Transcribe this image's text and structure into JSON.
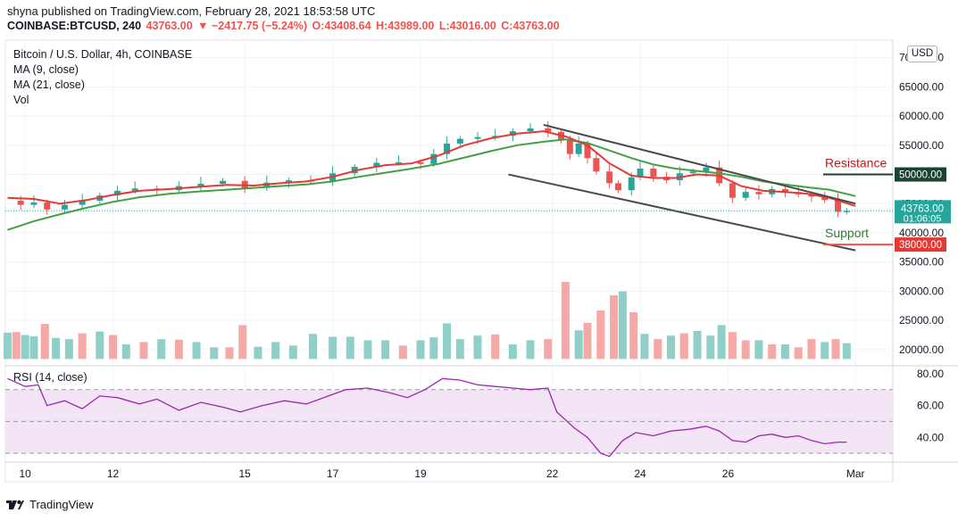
{
  "header": {
    "publisher_line": "shyna published on TradingView.com, February 28, 2021 18:53:58 UTC",
    "symbol": "COINBASE:BTCUSD, 240",
    "last": "43763.00",
    "change": "▼ −2417.75 (−5.24%)",
    "open": "O:43408.64",
    "high": "H:43989.00",
    "low": "L:43016.00",
    "close": "C:43763.00"
  },
  "legend": {
    "title": "Bitcoin / U.S. Dollar, 4h, COINBASE",
    "ma9": "MA (9, close)",
    "ma21": "MA (21, close)",
    "vol": "Vol"
  },
  "rsi_label": "RSI (14, close)",
  "currency_button": "USD",
  "footer": {
    "brand": "TradingView"
  },
  "colors": {
    "up": "#26a69a",
    "down": "#ef5350",
    "ma9": "#e53935",
    "ma21": "#43a047",
    "trendline": "#4a4a4a",
    "rsi": "#9c27b0",
    "rsi_band": "#f3e5f5",
    "resistance": "#b71c1c",
    "support": "#2e7d32",
    "price_tag": "#26a69a"
  },
  "chart_data": [
    {
      "type": "candlestick",
      "title": "Bitcoin / U.S. Dollar, 4h, COINBASE",
      "ylim": [
        18000,
        73000
      ],
      "xlim": [
        9.55,
        29.75
      ],
      "y_ticks": [
        "70000.00",
        "65000.00",
        "60000.00",
        "55000.00",
        "50000.00",
        "45000.00",
        "40000.00",
        "35000.00",
        "30000.00",
        "25000.00",
        "20000.00"
      ],
      "x_ticks": [
        {
          "x": 10,
          "label": "10"
        },
        {
          "x": 12,
          "label": "12"
        },
        {
          "x": 15,
          "label": "15"
        },
        {
          "x": 17,
          "label": "17"
        },
        {
          "x": 19,
          "label": "19"
        },
        {
          "x": 22,
          "label": "22"
        },
        {
          "x": 24,
          "label": "24"
        },
        {
          "x": 26,
          "label": "26"
        },
        {
          "x": 28.9,
          "label": "Mar"
        }
      ],
      "close_path": [
        [
          9.6,
          45500
        ],
        [
          9.9,
          44800
        ],
        [
          10.2,
          45200
        ],
        [
          10.5,
          44000
        ],
        [
          10.9,
          44800
        ],
        [
          11.3,
          45500
        ],
        [
          11.7,
          46400
        ],
        [
          12.1,
          47200
        ],
        [
          12.5,
          47600
        ],
        [
          13.0,
          47300
        ],
        [
          13.5,
          48000
        ],
        [
          14.0,
          48400
        ],
        [
          14.5,
          48900
        ],
        [
          15.0,
          47700
        ],
        [
          15.5,
          48600
        ],
        [
          16.0,
          49000
        ],
        [
          16.5,
          48900
        ],
        [
          17.0,
          50200
        ],
        [
          17.5,
          51300
        ],
        [
          18.0,
          52000
        ],
        [
          18.5,
          52100
        ],
        [
          19.0,
          51800
        ],
        [
          19.3,
          53500
        ],
        [
          19.6,
          55300
        ],
        [
          19.9,
          56100
        ],
        [
          20.3,
          56400
        ],
        [
          20.7,
          56600
        ],
        [
          21.1,
          57400
        ],
        [
          21.5,
          57900
        ],
        [
          21.9,
          57300
        ],
        [
          22.2,
          55800
        ],
        [
          22.4,
          53500
        ],
        [
          22.6,
          55300
        ],
        [
          22.8,
          52800
        ],
        [
          23.0,
          50500
        ],
        [
          23.3,
          48500
        ],
        [
          23.5,
          47300
        ],
        [
          23.8,
          49500
        ],
        [
          24.0,
          51000
        ],
        [
          24.3,
          49600
        ],
        [
          24.6,
          49000
        ],
        [
          24.9,
          50200
        ],
        [
          25.2,
          50500
        ],
        [
          25.5,
          51200
        ],
        [
          25.8,
          48500
        ],
        [
          26.1,
          46000
        ],
        [
          26.4,
          47000
        ],
        [
          26.7,
          46600
        ],
        [
          27.0,
          47500
        ],
        [
          27.3,
          47000
        ],
        [
          27.6,
          46600
        ],
        [
          27.9,
          46200
        ],
        [
          28.2,
          45600
        ],
        [
          28.5,
          43600
        ],
        [
          28.7,
          43763
        ]
      ],
      "ma9_path": [
        [
          9.6,
          46000
        ],
        [
          10.2,
          45800
        ],
        [
          10.8,
          45000
        ],
        [
          11.4,
          45600
        ],
        [
          12.0,
          46500
        ],
        [
          12.6,
          47200
        ],
        [
          13.3,
          47500
        ],
        [
          14.0,
          47900
        ],
        [
          14.6,
          48200
        ],
        [
          15.2,
          48100
        ],
        [
          15.8,
          48500
        ],
        [
          16.4,
          48800
        ],
        [
          17.0,
          49600
        ],
        [
          17.6,
          50800
        ],
        [
          18.2,
          51600
        ],
        [
          18.8,
          51900
        ],
        [
          19.4,
          53200
        ],
        [
          20.0,
          55000
        ],
        [
          20.6,
          56200
        ],
        [
          21.2,
          57000
        ],
        [
          21.8,
          57400
        ],
        [
          22.3,
          56500
        ],
        [
          22.8,
          55000
        ],
        [
          23.3,
          51900
        ],
        [
          23.8,
          49800
        ],
        [
          24.3,
          49400
        ],
        [
          24.8,
          49400
        ],
        [
          25.3,
          50000
        ],
        [
          25.8,
          49800
        ],
        [
          26.3,
          48000
        ],
        [
          26.8,
          47200
        ],
        [
          27.3,
          47000
        ],
        [
          27.8,
          46700
        ],
        [
          28.3,
          46000
        ],
        [
          28.9,
          44600
        ]
      ],
      "ma21_path": [
        [
          9.6,
          40500
        ],
        [
          10.2,
          42000
        ],
        [
          10.8,
          43200
        ],
        [
          11.4,
          44300
        ],
        [
          12.0,
          45300
        ],
        [
          12.6,
          46100
        ],
        [
          13.3,
          46700
        ],
        [
          14.0,
          47100
        ],
        [
          14.6,
          47400
        ],
        [
          15.2,
          47700
        ],
        [
          15.8,
          48000
        ],
        [
          16.4,
          48300
        ],
        [
          17.0,
          48800
        ],
        [
          17.6,
          49600
        ],
        [
          18.2,
          50300
        ],
        [
          18.8,
          51000
        ],
        [
          19.4,
          51800
        ],
        [
          20.0,
          52900
        ],
        [
          20.6,
          54000
        ],
        [
          21.2,
          55000
        ],
        [
          21.8,
          55600
        ],
        [
          22.3,
          56000
        ],
        [
          22.8,
          55400
        ],
        [
          23.3,
          54100
        ],
        [
          23.8,
          52800
        ],
        [
          24.3,
          51700
        ],
        [
          24.8,
          51000
        ],
        [
          25.3,
          50600
        ],
        [
          25.8,
          50200
        ],
        [
          26.3,
          49600
        ],
        [
          26.8,
          48800
        ],
        [
          27.3,
          48300
        ],
        [
          27.8,
          47800
        ],
        [
          28.3,
          47400
        ],
        [
          28.9,
          46300
        ]
      ],
      "trendlines": [
        {
          "from": [
            21.8,
            58500
          ],
          "to": [
            28.9,
            45000
          ]
        },
        {
          "from": [
            21.0,
            50000
          ],
          "to": [
            28.9,
            37000
          ]
        }
      ],
      "price_tags": [
        {
          "value": 50000,
          "label": "50000.00",
          "role": "resistance",
          "name": "Resistance"
        },
        {
          "value": 38000,
          "label": "38000.00",
          "role": "support",
          "name": "Support"
        },
        {
          "value": 43763,
          "label": "43763.00",
          "sub": "01:06:05",
          "role": "last"
        }
      ],
      "volume": {
        "base_value": 18400,
        "bars": [
          [
            9.6,
            22900,
            "up"
          ],
          [
            9.8,
            23000,
            "down"
          ],
          [
            10.0,
            22500,
            "up"
          ],
          [
            10.2,
            22300,
            "up"
          ],
          [
            10.45,
            24400,
            "down"
          ],
          [
            10.7,
            22000,
            "up"
          ],
          [
            11.0,
            21800,
            "up"
          ],
          [
            11.3,
            22800,
            "down"
          ],
          [
            11.7,
            23100,
            "up"
          ],
          [
            12.0,
            22500,
            "down"
          ],
          [
            12.3,
            20900,
            "up"
          ],
          [
            12.7,
            21300,
            "down"
          ],
          [
            13.1,
            21800,
            "up"
          ],
          [
            13.5,
            21700,
            "down"
          ],
          [
            13.9,
            21300,
            "up"
          ],
          [
            14.3,
            20400,
            "up"
          ],
          [
            14.65,
            20400,
            "down"
          ],
          [
            14.95,
            24200,
            "down"
          ],
          [
            15.3,
            20500,
            "up"
          ],
          [
            15.7,
            21300,
            "up"
          ],
          [
            16.1,
            20700,
            "up"
          ],
          [
            16.55,
            22700,
            "up"
          ],
          [
            17.0,
            22200,
            "up"
          ],
          [
            17.4,
            22200,
            "up"
          ],
          [
            17.8,
            21600,
            "up"
          ],
          [
            18.2,
            21600,
            "up"
          ],
          [
            18.6,
            20700,
            "down"
          ],
          [
            19.0,
            21600,
            "up"
          ],
          [
            19.3,
            22100,
            "up"
          ],
          [
            19.6,
            24500,
            "up"
          ],
          [
            19.9,
            21800,
            "up"
          ],
          [
            20.3,
            22400,
            "up"
          ],
          [
            20.7,
            22600,
            "down"
          ],
          [
            21.1,
            20900,
            "up"
          ],
          [
            21.5,
            21600,
            "up"
          ],
          [
            21.9,
            21800,
            "down"
          ],
          [
            22.3,
            31600,
            "down"
          ],
          [
            22.6,
            23300,
            "up"
          ],
          [
            22.8,
            24600,
            "down"
          ],
          [
            23.1,
            26700,
            "down"
          ],
          [
            23.4,
            29300,
            "down"
          ],
          [
            23.6,
            30000,
            "up"
          ],
          [
            23.85,
            26400,
            "down"
          ],
          [
            24.1,
            22700,
            "up"
          ],
          [
            24.4,
            21800,
            "down"
          ],
          [
            24.7,
            22400,
            "up"
          ],
          [
            25.0,
            22800,
            "down"
          ],
          [
            25.3,
            23200,
            "up"
          ],
          [
            25.6,
            22400,
            "up"
          ],
          [
            25.85,
            24200,
            "up"
          ],
          [
            26.1,
            23000,
            "down"
          ],
          [
            26.4,
            21600,
            "down"
          ],
          [
            26.7,
            21600,
            "up"
          ],
          [
            27.0,
            20900,
            "down"
          ],
          [
            27.3,
            20900,
            "up"
          ],
          [
            27.6,
            20400,
            "down"
          ],
          [
            27.9,
            21800,
            "down"
          ],
          [
            28.2,
            21300,
            "up"
          ],
          [
            28.45,
            21800,
            "down"
          ],
          [
            28.7,
            21100,
            "up"
          ]
        ]
      }
    },
    {
      "type": "line",
      "title": "RSI (14, close)",
      "ylim": [
        25,
        85
      ],
      "y_ticks": [
        "80.00",
        "60.00",
        "40.00"
      ],
      "band": [
        30,
        70
      ],
      "series": [
        {
          "name": "RSI (14, close)",
          "points": [
            [
              9.6,
              77
            ],
            [
              10.0,
              72
            ],
            [
              10.3,
              73
            ],
            [
              10.5,
              60
            ],
            [
              10.9,
              63
            ],
            [
              11.3,
              58
            ],
            [
              11.7,
              66
            ],
            [
              12.1,
              65
            ],
            [
              12.6,
              61
            ],
            [
              13.0,
              64
            ],
            [
              13.5,
              57
            ],
            [
              14.0,
              62
            ],
            [
              14.5,
              59
            ],
            [
              14.9,
              56
            ],
            [
              15.4,
              60
            ],
            [
              15.9,
              63
            ],
            [
              16.4,
              61
            ],
            [
              16.9,
              66
            ],
            [
              17.3,
              70
            ],
            [
              17.8,
              71
            ],
            [
              18.3,
              68
            ],
            [
              18.7,
              65
            ],
            [
              19.1,
              70
            ],
            [
              19.5,
              77
            ],
            [
              19.9,
              76
            ],
            [
              20.3,
              73
            ],
            [
              20.7,
              72
            ],
            [
              21.1,
              71
            ],
            [
              21.5,
              70
            ],
            [
              21.9,
              71
            ],
            [
              22.1,
              56
            ],
            [
              22.5,
              46
            ],
            [
              22.8,
              40
            ],
            [
              23.1,
              30
            ],
            [
              23.3,
              28
            ],
            [
              23.6,
              38
            ],
            [
              23.9,
              43
            ],
            [
              24.3,
              41
            ],
            [
              24.7,
              44
            ],
            [
              25.1,
              45
            ],
            [
              25.5,
              47
            ],
            [
              25.8,
              44
            ],
            [
              26.1,
              38
            ],
            [
              26.4,
              37
            ],
            [
              26.7,
              41
            ],
            [
              27.0,
              42
            ],
            [
              27.3,
              40
            ],
            [
              27.6,
              41
            ],
            [
              27.9,
              38
            ],
            [
              28.2,
              36
            ],
            [
              28.5,
              37
            ],
            [
              28.7,
              37
            ]
          ]
        }
      ]
    }
  ]
}
